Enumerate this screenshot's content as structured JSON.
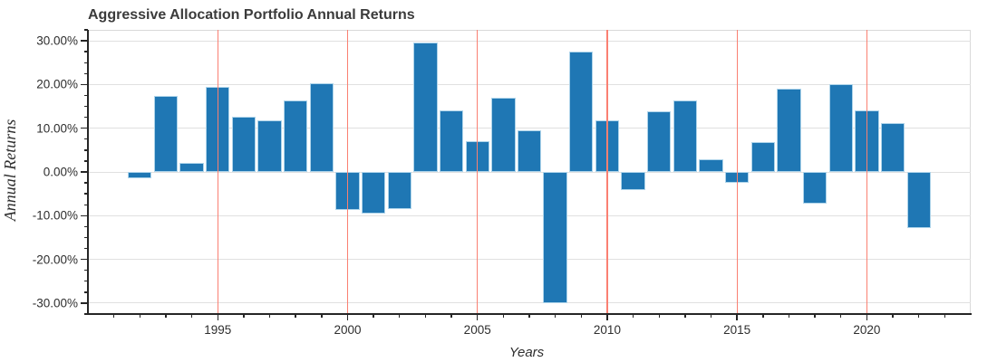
{
  "title": "Aggressive Allocation Portfolio Annual Returns",
  "colors": {
    "bar_fill": "#1f77b4",
    "bar_edge": "#aed4ea",
    "h_grid": "#e0e0e0",
    "v_grid": "#fa8072",
    "spine_dark": "#262626",
    "spine_light": "#d9d9d9",
    "tick_text": "#2e2e2e",
    "title_text": "#3b3b3b"
  },
  "chart_data": {
    "type": "bar",
    "title": "Aggressive Allocation Portfolio Annual Returns",
    "xlabel": "Years",
    "ylabel": "Annual Returns",
    "unit": "%",
    "categories": [
      1992,
      1993,
      1994,
      1995,
      1996,
      1997,
      1998,
      1999,
      2000,
      2001,
      2002,
      2003,
      2004,
      2005,
      2006,
      2007,
      2008,
      2009,
      2010,
      2011,
      2012,
      2013,
      2014,
      2015,
      2016,
      2017,
      2018,
      2019,
      2020,
      2021,
      2022
    ],
    "values": [
      -1.5,
      17.4,
      2.1,
      19.5,
      12.6,
      11.7,
      16.4,
      20.2,
      -8.7,
      -9.5,
      -8.5,
      29.5,
      14.0,
      7.1,
      17.0,
      9.6,
      -30.0,
      27.5,
      11.7,
      -4.1,
      13.8,
      16.4,
      2.9,
      -2.5,
      6.8,
      19.0,
      -7.2,
      20.0,
      14.0,
      11.2,
      -12.8
    ],
    "xlim": [
      1990,
      2024
    ],
    "ylim": [
      -32.5,
      32.5
    ],
    "x_major_ticks": [
      1995,
      2000,
      2005,
      2010,
      2015,
      2020
    ],
    "x_tick_labels": [
      "1995",
      "2000",
      "2005",
      "2010",
      "2015",
      "2020"
    ],
    "x_minor_step": 1,
    "y_major_ticks": [
      30,
      20,
      10,
      0,
      -10,
      -20,
      -30
    ],
    "y_tick_labels": [
      "30.00%",
      "20.00%",
      "10.00%",
      "0.00%",
      "-10.00%",
      "-20.00%",
      "-30.00%"
    ],
    "y_minor_step": 2.5,
    "bar_width_years": 0.92,
    "grid": {
      "horizontal": "gray-at-major-y",
      "vertical": "salmon-at-major-x"
    },
    "legend_position": "none"
  }
}
